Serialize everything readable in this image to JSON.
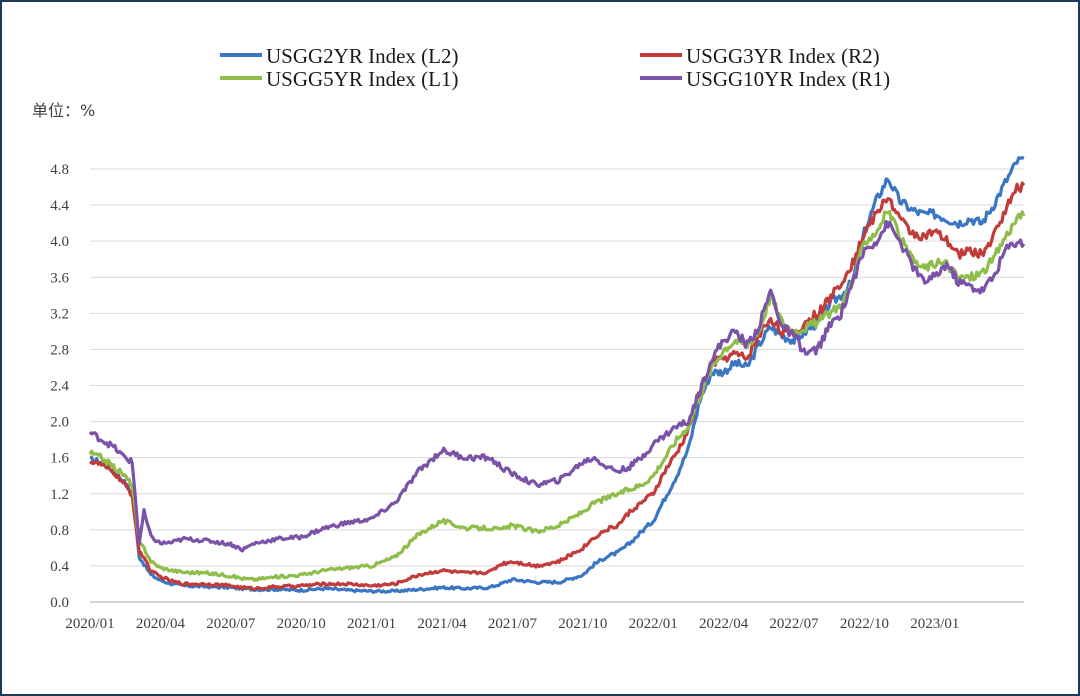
{
  "chart_data": {
    "type": "line",
    "unit_label": "单位：%",
    "ylim": [
      0.0,
      4.8
    ],
    "y_ticks": [
      "0.0",
      "0.4",
      "0.8",
      "1.2",
      "1.6",
      "2.0",
      "2.4",
      "2.8",
      "3.2",
      "3.6",
      "4.0",
      "4.4",
      "4.8"
    ],
    "x_range": [
      0,
      39.8
    ],
    "x_ticks": [
      {
        "label": "2020/01",
        "m": 0
      },
      {
        "label": "2020/04",
        "m": 3
      },
      {
        "label": "2020/07",
        "m": 6
      },
      {
        "label": "2020/10",
        "m": 9
      },
      {
        "label": "2021/01",
        "m": 12
      },
      {
        "label": "2021/04",
        "m": 15
      },
      {
        "label": "2021/07",
        "m": 18
      },
      {
        "label": "2021/10",
        "m": 21
      },
      {
        "label": "2022/01",
        "m": 24
      },
      {
        "label": "2022/04",
        "m": 27
      },
      {
        "label": "2022/07",
        "m": 30
      },
      {
        "label": "2022/10",
        "m": 33
      },
      {
        "label": "2023/01",
        "m": 36
      }
    ],
    "grid": true,
    "legend_position": "top",
    "series": [
      {
        "name": "USGG2YR Index  (L2)",
        "color": "#3b76c4",
        "points": [
          [
            0,
            1.58
          ],
          [
            0.5,
            1.55
          ],
          [
            1,
            1.45
          ],
          [
            1.4,
            1.35
          ],
          [
            1.8,
            1.2
          ],
          [
            2.1,
            0.5
          ],
          [
            2.3,
            0.42
          ],
          [
            2.6,
            0.3
          ],
          [
            3,
            0.24
          ],
          [
            3.5,
            0.2
          ],
          [
            4,
            0.18
          ],
          [
            5,
            0.17
          ],
          [
            6,
            0.16
          ],
          [
            6.5,
            0.15
          ],
          [
            7,
            0.14
          ],
          [
            8,
            0.14
          ],
          [
            9,
            0.13
          ],
          [
            10,
            0.15
          ],
          [
            11,
            0.13
          ],
          [
            12,
            0.12
          ],
          [
            13,
            0.12
          ],
          [
            14,
            0.14
          ],
          [
            15,
            0.16
          ],
          [
            16,
            0.15
          ],
          [
            17,
            0.16
          ],
          [
            17.5,
            0.2
          ],
          [
            18,
            0.25
          ],
          [
            19,
            0.22
          ],
          [
            20,
            0.22
          ],
          [
            21,
            0.3
          ],
          [
            21.5,
            0.42
          ],
          [
            22,
            0.5
          ],
          [
            22.5,
            0.55
          ],
          [
            23,
            0.65
          ],
          [
            23.5,
            0.78
          ],
          [
            24,
            0.9
          ],
          [
            24.5,
            1.15
          ],
          [
            25,
            1.4
          ],
          [
            25.5,
            1.7
          ],
          [
            26,
            2.25
          ],
          [
            26.5,
            2.55
          ],
          [
            27,
            2.55
          ],
          [
            27.5,
            2.65
          ],
          [
            28,
            2.6
          ],
          [
            28.5,
            2.85
          ],
          [
            29,
            3.05
          ],
          [
            29.5,
            2.95
          ],
          [
            30,
            2.9
          ],
          [
            30.5,
            3.0
          ],
          [
            31,
            3.1
          ],
          [
            31.5,
            3.3
          ],
          [
            32,
            3.4
          ],
          [
            32.5,
            3.55
          ],
          [
            33,
            4.1
          ],
          [
            33.5,
            4.45
          ],
          [
            34,
            4.7
          ],
          [
            34.5,
            4.45
          ],
          [
            35,
            4.35
          ],
          [
            35.5,
            4.3
          ],
          [
            36,
            4.3
          ],
          [
            36.5,
            4.25
          ],
          [
            37,
            4.2
          ],
          [
            37.5,
            4.25
          ],
          [
            38,
            4.2
          ],
          [
            38.5,
            4.4
          ],
          [
            39,
            4.65
          ],
          [
            39.5,
            4.88
          ],
          [
            39.8,
            4.92
          ]
        ]
      },
      {
        "name": "USGG3YR Index  (R2)",
        "color": "#c23b3b",
        "points": [
          [
            0,
            1.56
          ],
          [
            0.5,
            1.52
          ],
          [
            1,
            1.44
          ],
          [
            1.4,
            1.33
          ],
          [
            1.8,
            1.18
          ],
          [
            2.1,
            0.55
          ],
          [
            2.3,
            0.5
          ],
          [
            2.6,
            0.34
          ],
          [
            3,
            0.28
          ],
          [
            3.5,
            0.23
          ],
          [
            4,
            0.2
          ],
          [
            5,
            0.2
          ],
          [
            6,
            0.18
          ],
          [
            6.5,
            0.16
          ],
          [
            7,
            0.15
          ],
          [
            8,
            0.17
          ],
          [
            9,
            0.18
          ],
          [
            10,
            0.2
          ],
          [
            11,
            0.2
          ],
          [
            12,
            0.18
          ],
          [
            13,
            0.2
          ],
          [
            14,
            0.3
          ],
          [
            15,
            0.35
          ],
          [
            16,
            0.32
          ],
          [
            17,
            0.33
          ],
          [
            17.5,
            0.42
          ],
          [
            18,
            0.45
          ],
          [
            19,
            0.4
          ],
          [
            20,
            0.45
          ],
          [
            21,
            0.6
          ],
          [
            21.5,
            0.72
          ],
          [
            22,
            0.8
          ],
          [
            22.5,
            0.85
          ],
          [
            23,
            1.0
          ],
          [
            23.5,
            1.1
          ],
          [
            24,
            1.2
          ],
          [
            24.5,
            1.45
          ],
          [
            25,
            1.65
          ],
          [
            25.5,
            1.9
          ],
          [
            26,
            2.35
          ],
          [
            26.5,
            2.65
          ],
          [
            27,
            2.7
          ],
          [
            27.5,
            2.75
          ],
          [
            28,
            2.7
          ],
          [
            28.5,
            2.95
          ],
          [
            29,
            3.15
          ],
          [
            29.5,
            3.0
          ],
          [
            30,
            2.95
          ],
          [
            30.5,
            3.1
          ],
          [
            31,
            3.2
          ],
          [
            31.5,
            3.35
          ],
          [
            32,
            3.55
          ],
          [
            32.5,
            3.75
          ],
          [
            33,
            4.1
          ],
          [
            33.5,
            4.3
          ],
          [
            34,
            4.5
          ],
          [
            34.5,
            4.25
          ],
          [
            35,
            4.1
          ],
          [
            35.5,
            4.05
          ],
          [
            36,
            4.1
          ],
          [
            36.5,
            4.0
          ],
          [
            37,
            3.85
          ],
          [
            37.5,
            3.9
          ],
          [
            38,
            3.85
          ],
          [
            38.5,
            4.05
          ],
          [
            39,
            4.35
          ],
          [
            39.5,
            4.58
          ],
          [
            39.8,
            4.62
          ]
        ]
      },
      {
        "name": "USGG5YR Index  (L1)",
        "color": "#8fbd4a",
        "points": [
          [
            0,
            1.65
          ],
          [
            0.5,
            1.6
          ],
          [
            1,
            1.5
          ],
          [
            1.4,
            1.42
          ],
          [
            1.8,
            1.3
          ],
          [
            2.1,
            0.65
          ],
          [
            2.3,
            0.6
          ],
          [
            2.6,
            0.45
          ],
          [
            3,
            0.38
          ],
          [
            3.5,
            0.35
          ],
          [
            4,
            0.33
          ],
          [
            5,
            0.32
          ],
          [
            6,
            0.29
          ],
          [
            6.5,
            0.26
          ],
          [
            7,
            0.25
          ],
          [
            8,
            0.28
          ],
          [
            9,
            0.3
          ],
          [
            10,
            0.35
          ],
          [
            11,
            0.38
          ],
          [
            12,
            0.4
          ],
          [
            13,
            0.5
          ],
          [
            14,
            0.75
          ],
          [
            15,
            0.9
          ],
          [
            16,
            0.82
          ],
          [
            17,
            0.82
          ],
          [
            17.5,
            0.8
          ],
          [
            18,
            0.85
          ],
          [
            19,
            0.78
          ],
          [
            20,
            0.85
          ],
          [
            21,
            1.0
          ],
          [
            21.5,
            1.1
          ],
          [
            22,
            1.15
          ],
          [
            22.5,
            1.2
          ],
          [
            23,
            1.25
          ],
          [
            23.5,
            1.3
          ],
          [
            24,
            1.4
          ],
          [
            24.5,
            1.6
          ],
          [
            25,
            1.8
          ],
          [
            25.5,
            1.95
          ],
          [
            26,
            2.3
          ],
          [
            26.5,
            2.6
          ],
          [
            27,
            2.8
          ],
          [
            27.5,
            2.9
          ],
          [
            28,
            2.85
          ],
          [
            28.5,
            3.0
          ],
          [
            29,
            3.4
          ],
          [
            29.5,
            3.1
          ],
          [
            30,
            3.0
          ],
          [
            30.5,
            3.05
          ],
          [
            31,
            3.1
          ],
          [
            31.5,
            3.2
          ],
          [
            32,
            3.3
          ],
          [
            32.5,
            3.55
          ],
          [
            33,
            4.0
          ],
          [
            33.5,
            4.1
          ],
          [
            34,
            4.35
          ],
          [
            34.5,
            4.05
          ],
          [
            35,
            3.8
          ],
          [
            35.5,
            3.7
          ],
          [
            36,
            3.75
          ],
          [
            36.5,
            3.75
          ],
          [
            37,
            3.6
          ],
          [
            37.5,
            3.6
          ],
          [
            38,
            3.65
          ],
          [
            38.5,
            3.8
          ],
          [
            39,
            4.05
          ],
          [
            39.5,
            4.25
          ],
          [
            39.8,
            4.28
          ]
        ]
      },
      {
        "name": "USGG10YR Index  (R1)",
        "color": "#7a52a8",
        "points": [
          [
            0,
            1.88
          ],
          [
            0.5,
            1.8
          ],
          [
            1,
            1.72
          ],
          [
            1.4,
            1.62
          ],
          [
            1.8,
            1.55
          ],
          [
            2.1,
            0.65
          ],
          [
            2.3,
            1.0
          ],
          [
            2.6,
            0.72
          ],
          [
            3,
            0.65
          ],
          [
            3.5,
            0.66
          ],
          [
            4,
            0.7
          ],
          [
            5,
            0.68
          ],
          [
            6,
            0.64
          ],
          [
            6.5,
            0.58
          ],
          [
            7,
            0.65
          ],
          [
            8,
            0.7
          ],
          [
            9,
            0.72
          ],
          [
            10,
            0.82
          ],
          [
            11,
            0.88
          ],
          [
            12,
            0.92
          ],
          [
            13,
            1.1
          ],
          [
            14,
            1.45
          ],
          [
            15,
            1.68
          ],
          [
            16,
            1.6
          ],
          [
            17,
            1.6
          ],
          [
            17.5,
            1.5
          ],
          [
            18,
            1.42
          ],
          [
            19,
            1.3
          ],
          [
            20,
            1.35
          ],
          [
            21,
            1.55
          ],
          [
            21.5,
            1.6
          ],
          [
            22,
            1.5
          ],
          [
            22.5,
            1.45
          ],
          [
            23,
            1.5
          ],
          [
            23.5,
            1.6
          ],
          [
            24,
            1.75
          ],
          [
            24.5,
            1.85
          ],
          [
            25,
            1.95
          ],
          [
            25.5,
            2.0
          ],
          [
            26,
            2.35
          ],
          [
            26.5,
            2.7
          ],
          [
            27,
            2.9
          ],
          [
            27.5,
            3.0
          ],
          [
            28,
            2.85
          ],
          [
            28.5,
            3.05
          ],
          [
            29,
            3.45
          ],
          [
            29.5,
            3.05
          ],
          [
            30,
            2.95
          ],
          [
            30.5,
            2.75
          ],
          [
            31,
            2.8
          ],
          [
            31.5,
            3.05
          ],
          [
            32,
            3.2
          ],
          [
            32.5,
            3.55
          ],
          [
            33,
            3.9
          ],
          [
            33.5,
            4.0
          ],
          [
            34,
            4.2
          ],
          [
            34.5,
            4.0
          ],
          [
            35,
            3.75
          ],
          [
            35.5,
            3.55
          ],
          [
            36,
            3.6
          ],
          [
            36.5,
            3.75
          ],
          [
            37,
            3.55
          ],
          [
            37.5,
            3.5
          ],
          [
            38,
            3.45
          ],
          [
            38.5,
            3.6
          ],
          [
            39,
            3.9
          ],
          [
            39.5,
            4.0
          ],
          [
            39.8,
            3.97
          ]
        ]
      }
    ]
  }
}
